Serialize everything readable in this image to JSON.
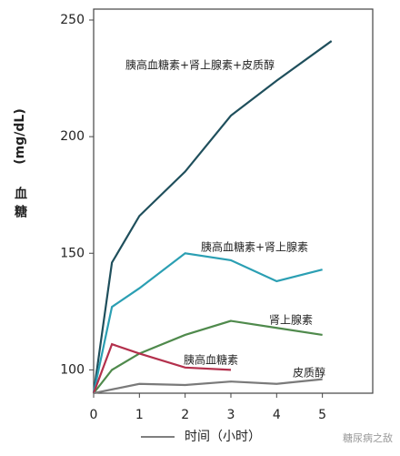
{
  "chart_data": {
    "type": "line",
    "y_label": "血糖",
    "y_unit": "(mg/dL)",
    "x_label": "时间（小时）",
    "watermark": "糖尿病之敌",
    "xlim": [
      0,
      6.1
    ],
    "xticks": [
      0,
      1,
      2,
      3,
      4,
      5
    ],
    "ylim": [
      90,
      250
    ],
    "yticks": [
      100,
      150,
      200,
      250
    ],
    "series": [
      {
        "name": "胰高血糖素+肾上腺素+皮质醇",
        "color": "#1f4f5c",
        "x": [
          0,
          0.4,
          1,
          2,
          3,
          4,
          5.2
        ],
        "values": [
          90,
          146,
          166,
          185,
          209,
          224,
          241
        ]
      },
      {
        "name": "胰高血糖素+肾上腺素",
        "color": "#2b9fb3",
        "x": [
          0,
          0.4,
          1,
          2,
          3,
          4,
          5
        ],
        "values": [
          90,
          127,
          135,
          150,
          147,
          138,
          143
        ]
      },
      {
        "name": "肾上腺素",
        "color": "#4f8a4c",
        "x": [
          0,
          0.4,
          1,
          2,
          3,
          4,
          5
        ],
        "values": [
          90,
          100,
          107,
          115,
          121,
          118,
          115
        ]
      },
      {
        "name": "胰高血糖素",
        "color": "#b3304c",
        "x": [
          0,
          0.4,
          1,
          2,
          3
        ],
        "values": [
          90,
          111,
          107,
          101,
          100
        ]
      },
      {
        "name": "皮质醇",
        "color": "#7a7a7a",
        "x": [
          0,
          1,
          2,
          3,
          4,
          5
        ],
        "values": [
          90,
          94,
          93.5,
          95,
          94,
          96
        ]
      }
    ]
  }
}
